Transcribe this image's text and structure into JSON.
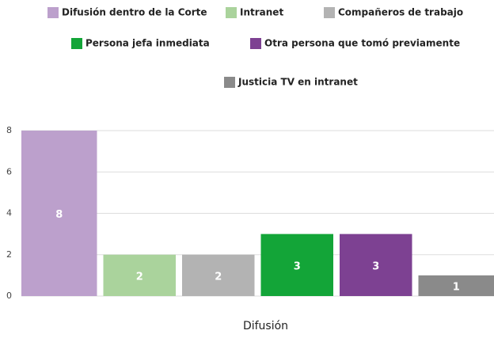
{
  "chart_data": {
    "type": "bar",
    "categories": [
      "Difusión"
    ],
    "series": [
      {
        "name": "Difusión dentro de la Corte",
        "color": "#bca0cc",
        "values": [
          8
        ]
      },
      {
        "name": "Intranet",
        "color": "#aad39c",
        "values": [
          2
        ]
      },
      {
        "name": "Compañeros de trabajo",
        "color": "#b3b3b3",
        "values": [
          2
        ]
      },
      {
        "name": "Persona jefa inmediata",
        "color": "#13a538",
        "values": [
          3
        ]
      },
      {
        "name": "Otra persona que tomó previamente",
        "color": "#7d4192",
        "values": [
          3
        ]
      },
      {
        "name": "Justicia TV en intranet",
        "color": "#8a8a8a",
        "values": [
          1
        ]
      }
    ],
    "ylim": [
      0,
      8
    ],
    "yticks": [
      0,
      2,
      4,
      6,
      8
    ],
    "grid": true,
    "legend": "top"
  }
}
